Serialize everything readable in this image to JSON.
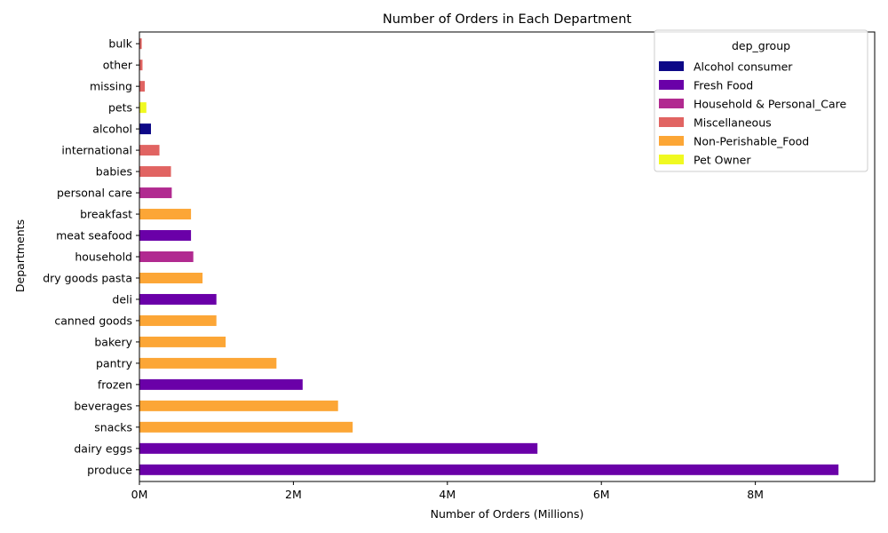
{
  "chart_data": {
    "type": "bar",
    "orientation": "horizontal",
    "title": "Number of Orders in Each Department",
    "xlabel": "Number of Orders (Millions)",
    "ylabel": "Departments",
    "xlim": [
      0,
      9.55
    ],
    "x_ticks": [
      {
        "value": 0,
        "label": "0M"
      },
      {
        "value": 2,
        "label": "2M"
      },
      {
        "value": 4,
        "label": "4M"
      },
      {
        "value": 6,
        "label": "6M"
      },
      {
        "value": 8,
        "label": "8M"
      }
    ],
    "grid": false,
    "legend": {
      "title": "dep_group",
      "placement": "top-right",
      "entries": [
        {
          "name": "Alcohol consumer",
          "color": "#0d0887"
        },
        {
          "name": "Fresh Food",
          "color": "#6a00a8"
        },
        {
          "name": "Household & Personal_Care",
          "color": "#b12a90"
        },
        {
          "name": "Miscellaneous",
          "color": "#e16462"
        },
        {
          "name": "Non-Perishable_Food",
          "color": "#fca636"
        },
        {
          "name": "Pet Owner",
          "color": "#f0f921"
        }
      ]
    },
    "categories": [
      "produce",
      "dairy eggs",
      "snacks",
      "beverages",
      "frozen",
      "pantry",
      "bakery",
      "canned goods",
      "deli",
      "dry goods pasta",
      "household",
      "meat seafood",
      "breakfast",
      "personal care",
      "babies",
      "international",
      "alcohol",
      "pets",
      "missing",
      "other",
      "bulk"
    ],
    "values": [
      9.08,
      5.17,
      2.77,
      2.58,
      2.12,
      1.78,
      1.12,
      1.0,
      1.0,
      0.82,
      0.7,
      0.67,
      0.67,
      0.42,
      0.41,
      0.26,
      0.15,
      0.09,
      0.07,
      0.04,
      0.03
    ],
    "groups": [
      "Fresh Food",
      "Fresh Food",
      "Non-Perishable_Food",
      "Non-Perishable_Food",
      "Fresh Food",
      "Non-Perishable_Food",
      "Non-Perishable_Food",
      "Non-Perishable_Food",
      "Fresh Food",
      "Non-Perishable_Food",
      "Household & Personal_Care",
      "Fresh Food",
      "Non-Perishable_Food",
      "Household & Personal_Care",
      "Miscellaneous",
      "Miscellaneous",
      "Alcohol consumer",
      "Pet Owner",
      "Miscellaneous",
      "Miscellaneous",
      "Miscellaneous"
    ]
  }
}
